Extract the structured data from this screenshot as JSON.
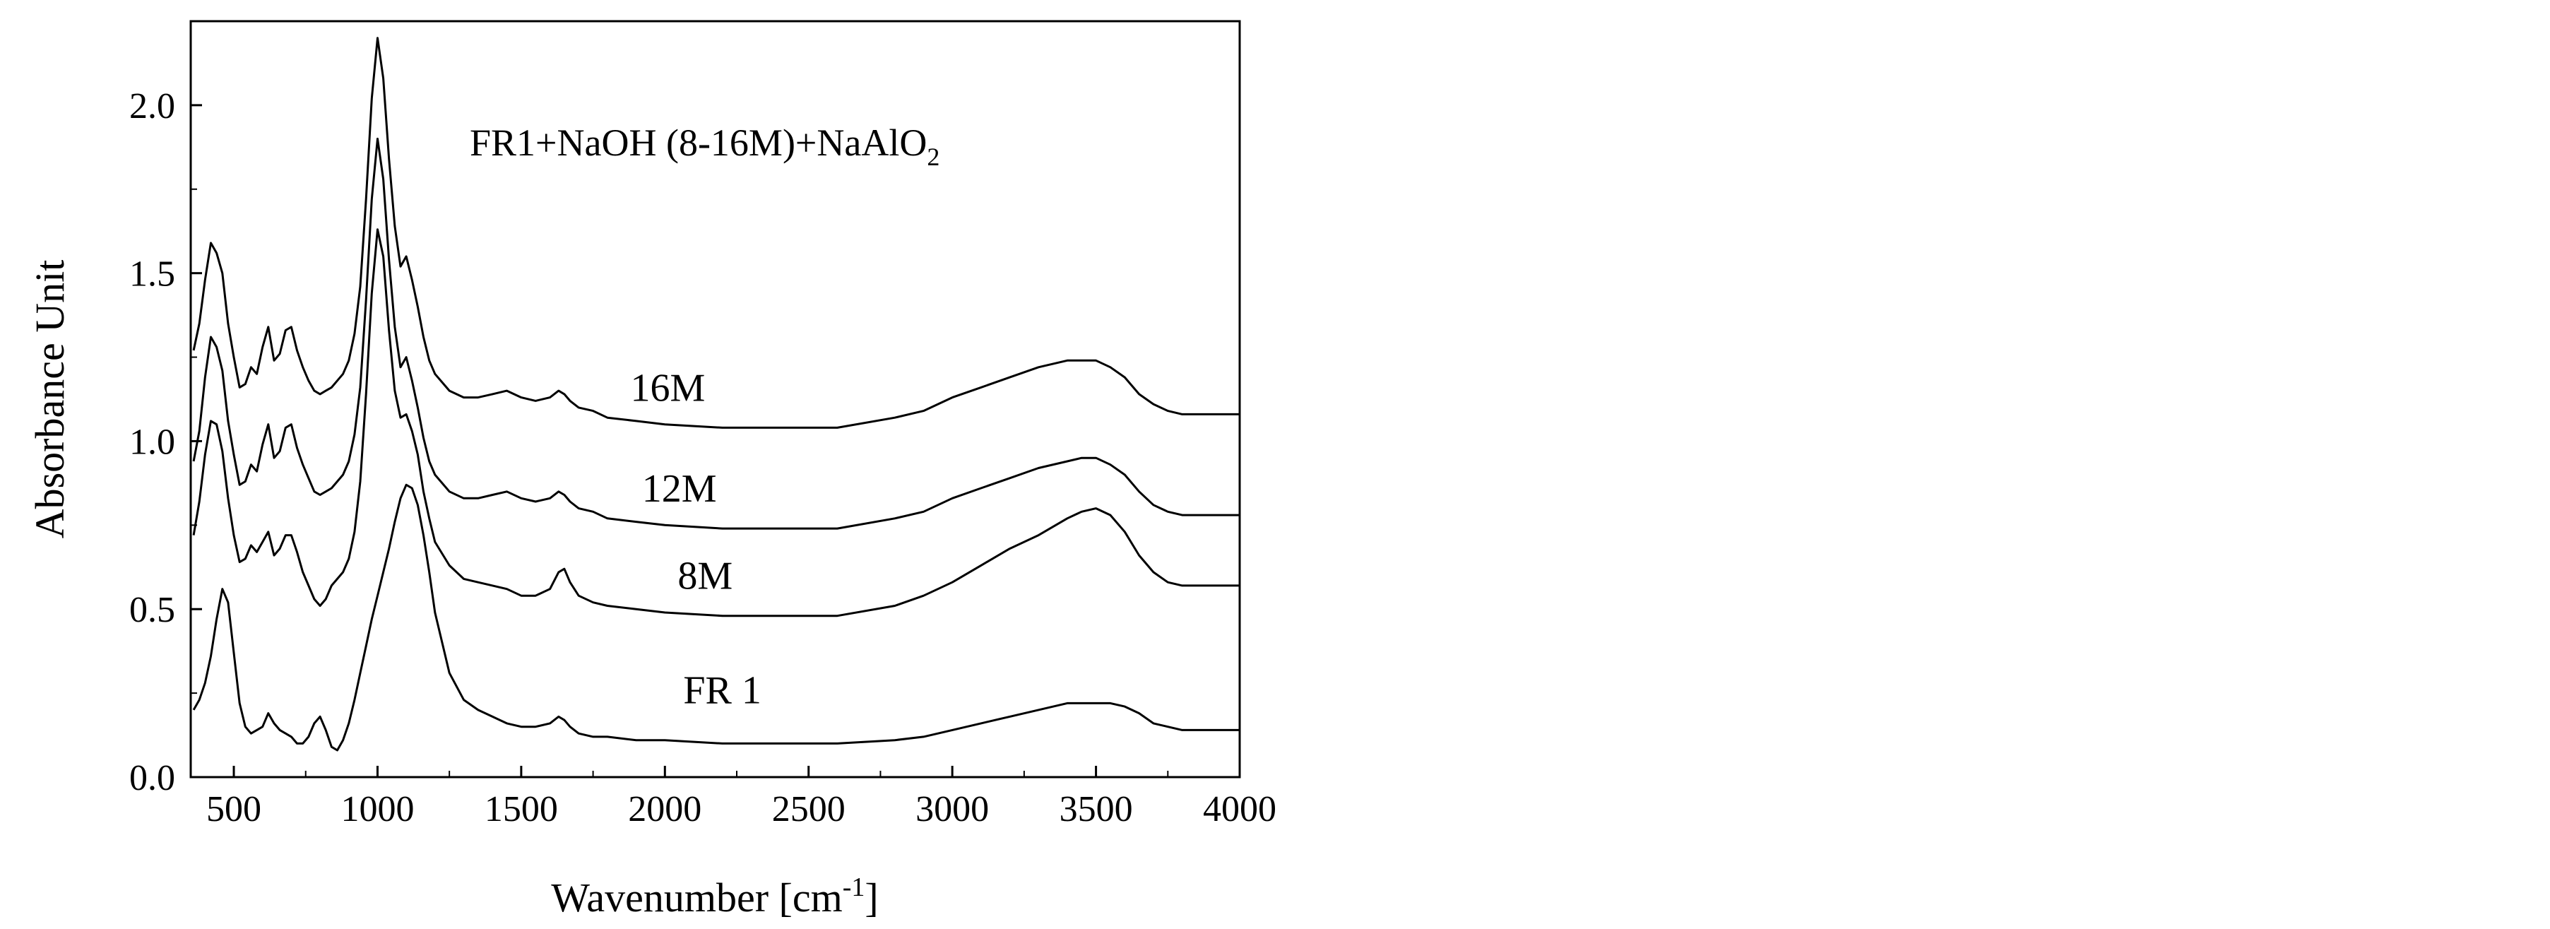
{
  "chart_data": {
    "type": "line",
    "title": "",
    "annotation": {
      "text": "FR1+NaOH (8-16M)+NaAlO",
      "subscript": "2"
    },
    "xlabel": {
      "text": "Wavenumber [cm",
      "superscript": "-1",
      "suffix": "]"
    },
    "ylabel": "Absorbance Unit",
    "xlim": [
      350,
      4000
    ],
    "ylim": [
      0,
      2.25
    ],
    "xticks": [
      500,
      1000,
      1500,
      2000,
      2500,
      3000,
      3500,
      4000
    ],
    "xtick_labels": [
      "500",
      "1000",
      "1500",
      "2000",
      "2500",
      "3000",
      "3500",
      "4000"
    ],
    "yticks": [
      0,
      0.5,
      1.0,
      1.5,
      2.0
    ],
    "ytick_labels": [
      "0.0",
      "0.5",
      "1.0",
      "1.5",
      "2.0"
    ],
    "grid": false,
    "legend": "none",
    "line_color": "#000000",
    "series": [
      {
        "name": "16M",
        "label_at": [
          2010,
          1.12
        ],
        "x": [
          360,
          380,
          400,
          420,
          440,
          460,
          480,
          500,
          520,
          540,
          560,
          580,
          600,
          620,
          640,
          660,
          680,
          700,
          720,
          740,
          760,
          780,
          800,
          820,
          840,
          860,
          880,
          900,
          920,
          940,
          960,
          980,
          1000,
          1020,
          1040,
          1060,
          1080,
          1100,
          1120,
          1140,
          1160,
          1180,
          1200,
          1250,
          1300,
          1350,
          1400,
          1450,
          1500,
          1550,
          1600,
          1630,
          1650,
          1670,
          1700,
          1750,
          1800,
          1900,
          2000,
          2200,
          2400,
          2600,
          2800,
          2900,
          3000,
          3100,
          3200,
          3300,
          3400,
          3450,
          3500,
          3550,
          3600,
          3650,
          3700,
          3750,
          3800,
          3900,
          4000
        ],
        "y": [
          1.27,
          1.35,
          1.48,
          1.59,
          1.56,
          1.5,
          1.35,
          1.25,
          1.16,
          1.17,
          1.22,
          1.2,
          1.28,
          1.34,
          1.24,
          1.26,
          1.33,
          1.34,
          1.27,
          1.22,
          1.18,
          1.15,
          1.14,
          1.15,
          1.16,
          1.18,
          1.2,
          1.24,
          1.32,
          1.46,
          1.72,
          2.02,
          2.2,
          2.08,
          1.84,
          1.64,
          1.52,
          1.55,
          1.48,
          1.4,
          1.31,
          1.24,
          1.2,
          1.15,
          1.13,
          1.13,
          1.14,
          1.15,
          1.13,
          1.12,
          1.13,
          1.15,
          1.14,
          1.12,
          1.1,
          1.09,
          1.07,
          1.06,
          1.05,
          1.04,
          1.04,
          1.04,
          1.07,
          1.09,
          1.13,
          1.16,
          1.19,
          1.22,
          1.24,
          1.24,
          1.24,
          1.22,
          1.19,
          1.14,
          1.11,
          1.09,
          1.08,
          1.08,
          1.08
        ]
      },
      {
        "name": "12M",
        "label_at": [
          2050,
          0.82
        ],
        "x": [
          360,
          380,
          400,
          420,
          440,
          460,
          480,
          500,
          520,
          540,
          560,
          580,
          600,
          620,
          640,
          660,
          680,
          700,
          720,
          740,
          760,
          780,
          800,
          820,
          840,
          860,
          880,
          900,
          920,
          940,
          960,
          980,
          1000,
          1020,
          1040,
          1060,
          1080,
          1100,
          1120,
          1140,
          1160,
          1180,
          1200,
          1250,
          1300,
          1350,
          1400,
          1450,
          1500,
          1550,
          1600,
          1630,
          1650,
          1670,
          1700,
          1750,
          1800,
          1900,
          2000,
          2200,
          2400,
          2600,
          2800,
          2900,
          3000,
          3100,
          3200,
          3300,
          3400,
          3450,
          3500,
          3550,
          3600,
          3650,
          3700,
          3750,
          3800,
          3900,
          4000
        ],
        "y": [
          0.94,
          1.03,
          1.19,
          1.31,
          1.28,
          1.21,
          1.06,
          0.96,
          0.87,
          0.88,
          0.93,
          0.91,
          0.99,
          1.05,
          0.95,
          0.97,
          1.04,
          1.05,
          0.98,
          0.93,
          0.89,
          0.85,
          0.84,
          0.85,
          0.86,
          0.88,
          0.9,
          0.94,
          1.02,
          1.16,
          1.42,
          1.72,
          1.9,
          1.78,
          1.54,
          1.34,
          1.22,
          1.25,
          1.18,
          1.1,
          1.01,
          0.94,
          0.9,
          0.85,
          0.83,
          0.83,
          0.84,
          0.85,
          0.83,
          0.82,
          0.83,
          0.85,
          0.84,
          0.82,
          0.8,
          0.79,
          0.77,
          0.76,
          0.75,
          0.74,
          0.74,
          0.74,
          0.77,
          0.79,
          0.83,
          0.86,
          0.89,
          0.92,
          0.94,
          0.95,
          0.95,
          0.93,
          0.9,
          0.85,
          0.81,
          0.79,
          0.78,
          0.78,
          0.78
        ]
      },
      {
        "name": "8M",
        "label_at": [
          2140,
          0.56
        ],
        "x": [
          360,
          380,
          400,
          420,
          440,
          460,
          480,
          500,
          520,
          540,
          560,
          580,
          600,
          620,
          640,
          660,
          680,
          700,
          720,
          740,
          760,
          780,
          800,
          820,
          840,
          860,
          880,
          900,
          920,
          940,
          960,
          980,
          1000,
          1020,
          1040,
          1060,
          1080,
          1100,
          1120,
          1140,
          1160,
          1180,
          1200,
          1250,
          1300,
          1350,
          1400,
          1450,
          1500,
          1550,
          1600,
          1630,
          1650,
          1670,
          1700,
          1750,
          1800,
          1900,
          2000,
          2200,
          2400,
          2600,
          2800,
          2900,
          3000,
          3100,
          3200,
          3300,
          3400,
          3450,
          3500,
          3550,
          3600,
          3650,
          3700,
          3750,
          3800,
          3900,
          4000
        ],
        "y": [
          0.72,
          0.82,
          0.96,
          1.06,
          1.05,
          0.97,
          0.83,
          0.72,
          0.64,
          0.65,
          0.69,
          0.67,
          0.7,
          0.73,
          0.66,
          0.68,
          0.72,
          0.72,
          0.67,
          0.61,
          0.57,
          0.53,
          0.51,
          0.53,
          0.57,
          0.59,
          0.61,
          0.65,
          0.73,
          0.88,
          1.14,
          1.44,
          1.63,
          1.55,
          1.33,
          1.15,
          1.07,
          1.08,
          1.03,
          0.96,
          0.85,
          0.77,
          0.7,
          0.63,
          0.59,
          0.58,
          0.57,
          0.56,
          0.54,
          0.54,
          0.56,
          0.61,
          0.62,
          0.58,
          0.54,
          0.52,
          0.51,
          0.5,
          0.49,
          0.48,
          0.48,
          0.48,
          0.51,
          0.54,
          0.58,
          0.63,
          0.68,
          0.72,
          0.77,
          0.79,
          0.8,
          0.78,
          0.73,
          0.66,
          0.61,
          0.58,
          0.57,
          0.57,
          0.57
        ]
      },
      {
        "name": "FR 1",
        "label_at": [
          2200,
          0.22
        ],
        "x": [
          360,
          380,
          400,
          420,
          440,
          460,
          480,
          500,
          520,
          540,
          560,
          580,
          600,
          620,
          640,
          660,
          680,
          700,
          720,
          740,
          760,
          780,
          800,
          820,
          840,
          860,
          880,
          900,
          920,
          940,
          960,
          980,
          1000,
          1020,
          1040,
          1060,
          1080,
          1100,
          1120,
          1140,
          1160,
          1180,
          1200,
          1250,
          1300,
          1350,
          1400,
          1450,
          1500,
          1550,
          1600,
          1630,
          1650,
          1670,
          1700,
          1750,
          1800,
          1900,
          2000,
          2200,
          2400,
          2600,
          2800,
          2900,
          3000,
          3100,
          3200,
          3300,
          3400,
          3450,
          3500,
          3550,
          3600,
          3650,
          3700,
          3750,
          3800,
          3900,
          4000
        ],
        "y": [
          0.2,
          0.23,
          0.28,
          0.36,
          0.47,
          0.56,
          0.52,
          0.37,
          0.22,
          0.15,
          0.13,
          0.14,
          0.15,
          0.19,
          0.16,
          0.14,
          0.13,
          0.12,
          0.1,
          0.1,
          0.12,
          0.16,
          0.18,
          0.14,
          0.09,
          0.08,
          0.11,
          0.16,
          0.23,
          0.31,
          0.39,
          0.47,
          0.54,
          0.61,
          0.68,
          0.76,
          0.83,
          0.87,
          0.86,
          0.81,
          0.72,
          0.61,
          0.49,
          0.31,
          0.23,
          0.2,
          0.18,
          0.16,
          0.15,
          0.15,
          0.16,
          0.18,
          0.17,
          0.15,
          0.13,
          0.12,
          0.12,
          0.11,
          0.11,
          0.1,
          0.1,
          0.1,
          0.11,
          0.12,
          0.14,
          0.16,
          0.18,
          0.2,
          0.22,
          0.22,
          0.22,
          0.22,
          0.21,
          0.19,
          0.16,
          0.15,
          0.14,
          0.14,
          0.14
        ]
      }
    ]
  }
}
